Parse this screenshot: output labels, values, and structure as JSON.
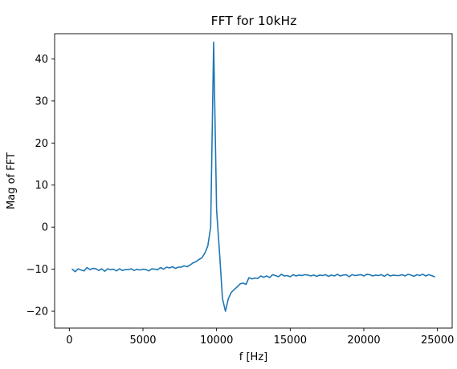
{
  "chart_data": {
    "type": "line",
    "title": "FFT for 10kHz",
    "xlabel": "f [Hz]",
    "ylabel": "Mag of FFT",
    "xlim": [
      -1000,
      26000
    ],
    "ylim": [
      -24,
      46
    ],
    "xticks": [
      0,
      5000,
      10000,
      15000,
      20000,
      25000
    ],
    "yticks": [
      -20,
      -10,
      0,
      10,
      20,
      30,
      40
    ],
    "grid": false,
    "legend": "none",
    "series": [
      {
        "color": "#1f77b4",
        "x": [
          200,
          400,
          600,
          800,
          1000,
          1200,
          1400,
          1600,
          1800,
          2000,
          2200,
          2400,
          2600,
          2800,
          3000,
          3200,
          3400,
          3600,
          3800,
          4000,
          4200,
          4400,
          4600,
          4800,
          5000,
          5200,
          5400,
          5600,
          5800,
          6000,
          6200,
          6400,
          6600,
          6800,
          7000,
          7200,
          7400,
          7600,
          7800,
          8000,
          8200,
          8400,
          8600,
          8800,
          9000,
          9200,
          9400,
          9600,
          9800,
          10000,
          10200,
          10400,
          10600,
          10800,
          11000,
          11200,
          11400,
          11600,
          11800,
          12000,
          12200,
          12400,
          12600,
          12800,
          13000,
          13200,
          13400,
          13600,
          13800,
          14000,
          14200,
          14400,
          14600,
          14800,
          15000,
          15200,
          15400,
          15600,
          15800,
          16000,
          16200,
          16400,
          16600,
          16800,
          17000,
          17200,
          17400,
          17600,
          17800,
          18000,
          18200,
          18400,
          18600,
          18800,
          19000,
          19200,
          19400,
          19600,
          19800,
          20000,
          20200,
          20400,
          20600,
          20800,
          21000,
          21200,
          21400,
          21600,
          21800,
          22000,
          22200,
          22400,
          22600,
          22800,
          23000,
          23200,
          23400,
          23600,
          23800,
          24000,
          24200,
          24400,
          24600,
          24800
        ],
        "y": [
          -10.0,
          -10.6,
          -9.9,
          -10.2,
          -10.4,
          -9.6,
          -10.1,
          -9.8,
          -9.9,
          -10.3,
          -9.9,
          -10.5,
          -9.9,
          -10.1,
          -10.0,
          -10.4,
          -9.9,
          -10.3,
          -10.1,
          -10.1,
          -9.9,
          -10.3,
          -10.0,
          -10.2,
          -10.0,
          -10.1,
          -10.4,
          -9.9,
          -10.0,
          -10.1,
          -9.6,
          -10.0,
          -9.5,
          -9.7,
          -9.4,
          -9.8,
          -9.5,
          -9.5,
          -9.2,
          -9.4,
          -9.0,
          -8.5,
          -8.2,
          -7.7,
          -7.3,
          -6.2,
          -4.5,
          0.0,
          44.0,
          4.0,
          -6.0,
          -17.0,
          -20.0,
          -17.0,
          -15.5,
          -14.8,
          -14.2,
          -13.5,
          -13.3,
          -13.6,
          -12.0,
          -12.3,
          -12.1,
          -12.2,
          -11.6,
          -11.9,
          -11.6,
          -12.0,
          -11.3,
          -11.5,
          -11.8,
          -11.2,
          -11.6,
          -11.5,
          -11.8,
          -11.3,
          -11.6,
          -11.4,
          -11.5,
          -11.3,
          -11.4,
          -11.6,
          -11.4,
          -11.7,
          -11.4,
          -11.5,
          -11.3,
          -11.7,
          -11.4,
          -11.6,
          -11.2,
          -11.6,
          -11.4,
          -11.3,
          -11.8,
          -11.3,
          -11.5,
          -11.4,
          -11.3,
          -11.6,
          -11.2,
          -11.3,
          -11.6,
          -11.4,
          -11.5,
          -11.3,
          -11.7,
          -11.2,
          -11.6,
          -11.4,
          -11.5,
          -11.5,
          -11.3,
          -11.6,
          -11.2,
          -11.4,
          -11.7,
          -11.3,
          -11.5,
          -11.2,
          -11.6,
          -11.3,
          -11.5,
          -11.8
        ]
      }
    ]
  }
}
